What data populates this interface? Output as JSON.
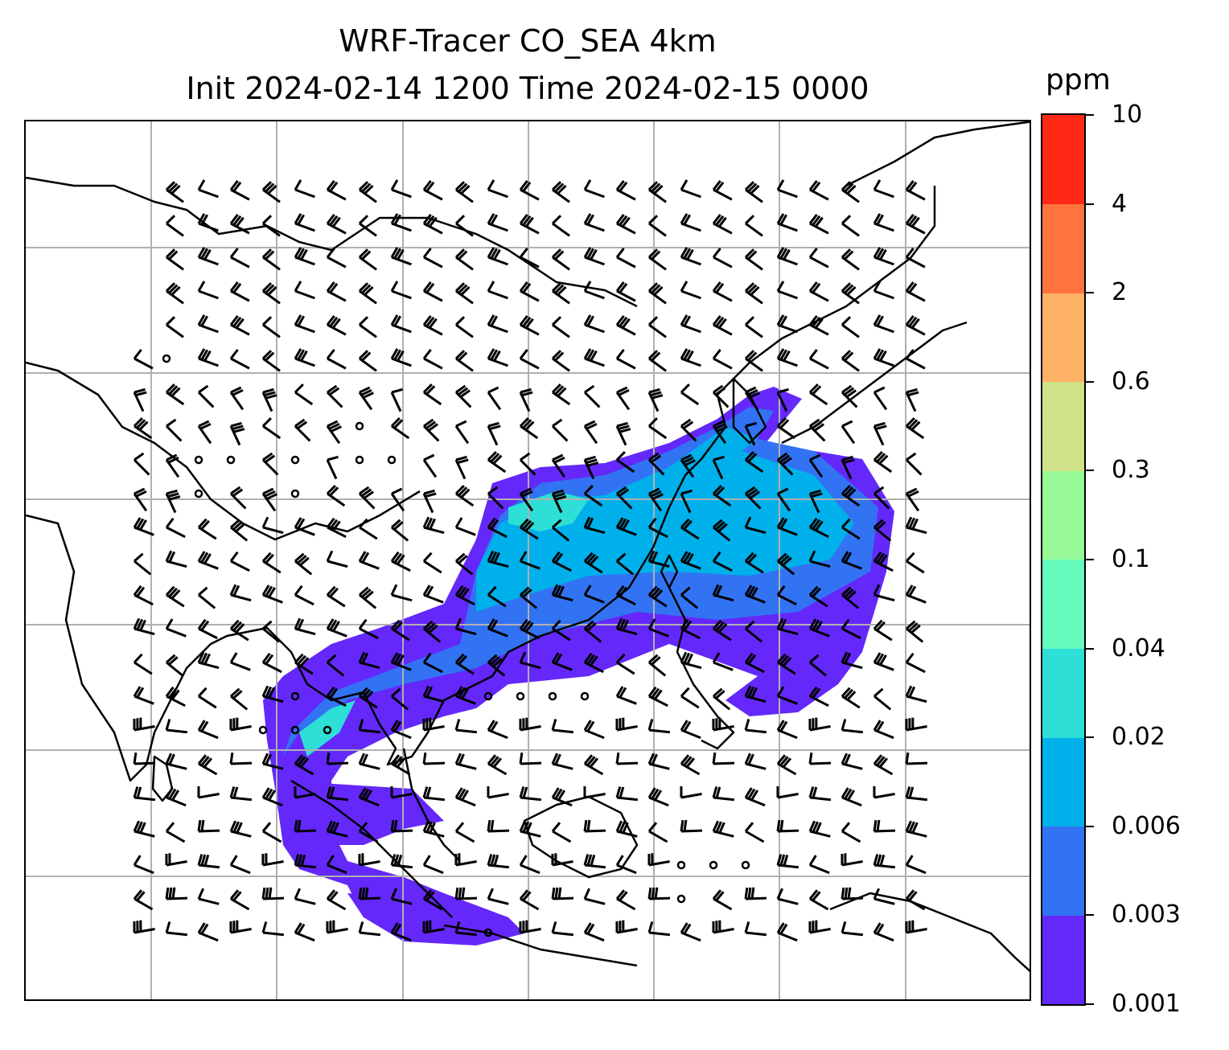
{
  "title": {
    "line1": "WRF-Tracer CO_SEA 4km",
    "line2": "Init 2024-02-14 1200 Time 2024-02-15 0000"
  },
  "colorbar": {
    "unit": "ppm",
    "levels": [
      "0.001",
      "0.003",
      "0.006",
      "0.02",
      "0.04",
      "0.1",
      "0.3",
      "0.6",
      "2",
      "4",
      "10"
    ],
    "colors": [
      "#6428fa",
      "#3273f3",
      "#00b0eb",
      "#2ddfd6",
      "#65fbbd",
      "#96f896",
      "#d0e287",
      "#feb265",
      "#ff733e",
      "#ff2916"
    ]
  },
  "map": {
    "gridlines": true,
    "wind_barbs": true,
    "coastlines": true,
    "tracer_field": "CO_SEA"
  }
}
